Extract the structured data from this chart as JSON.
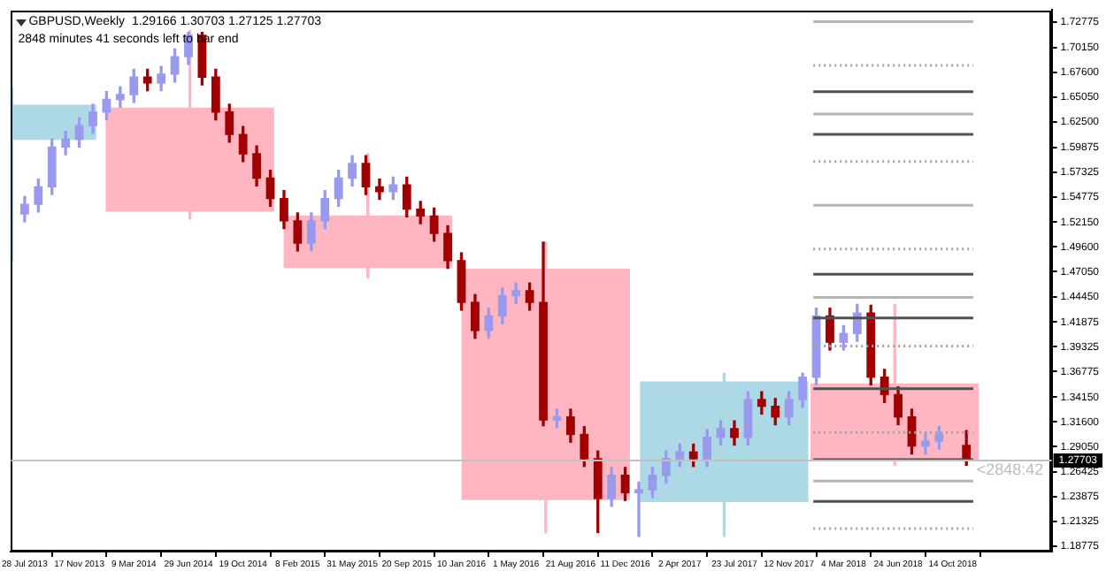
{
  "chart_data": {
    "type": "candlestick",
    "title": "GBPUSD,Weekly  1.29166 1.30703 1.27125 1.27703",
    "annotations": [
      "2848 minutes 41 seconds left to bar end",
      {
        "text": "<2848:42",
        "x": "2018-12-02",
        "y": 1.27703
      }
    ],
    "xlim": [
      "2013-06-30",
      "2019-05-05"
    ],
    "xticks": [
      {
        "value": "2013-07-28",
        "label": "28 Jul 2013"
      },
      {
        "value": "2013-11-17",
        "label": "17 Nov 2013"
      },
      {
        "value": "2014-03-09",
        "label": "9 Mar 2014"
      },
      {
        "value": "2014-06-29",
        "label": "29 Jun 2014"
      },
      {
        "value": "2014-10-19",
        "label": "19 Oct 2014"
      },
      {
        "value": "2015-02-08",
        "label": "8 Feb 2015"
      },
      {
        "value": "2015-05-31",
        "label": "31 May 2015"
      },
      {
        "value": "2015-09-20",
        "label": "20 Sep 2015"
      },
      {
        "value": "2016-01-10",
        "label": "10 Jan 2016"
      },
      {
        "value": "2016-05-01",
        "label": "1 May 2016"
      },
      {
        "value": "2016-08-21",
        "label": "21 Aug 2016"
      },
      {
        "value": "2016-12-11",
        "label": "11 Dec 2016"
      },
      {
        "value": "2017-04-02",
        "label": "2 Apr 2017"
      },
      {
        "value": "2017-07-23",
        "label": "23 Jul 2017"
      },
      {
        "value": "2017-11-12",
        "label": "12 Nov 2017"
      },
      {
        "value": "2018-03-04",
        "label": "4 Mar 2018"
      },
      {
        "value": "2018-06-24",
        "label": "24 Jun 2018"
      },
      {
        "value": "2018-10-14",
        "label": "14 Oct 2018"
      }
    ],
    "ylim": [
      1.1824,
      1.7402
    ],
    "yticks": [
      1.18775,
      1.21325,
      1.23875,
      1.26425,
      {
        "value": 1.2905,
        "label": "1.29050"
      },
      {
        "value": 1.316,
        "label": "1.31600"
      },
      {
        "value": 1.3415,
        "label": "1.34150"
      },
      1.36775,
      1.39325,
      1.41875,
      {
        "value": 1.4445,
        "label": "1.44450"
      },
      {
        "value": 1.4705,
        "label": "1.47050"
      },
      {
        "value": 1.496,
        "label": "1.49600"
      },
      {
        "value": 1.5215,
        "label": "1.52150"
      },
      1.54775,
      1.57325,
      1.59875,
      {
        "value": 1.625,
        "label": "1.62500"
      },
      {
        "value": 1.6505,
        "label": "1.65050"
      },
      {
        "value": 1.676,
        "label": "1.67600"
      },
      {
        "value": 1.7015,
        "label": "1.70150"
      },
      1.72775
    ],
    "ref_lines": [
      {
        "axis": "y",
        "value": 1.27703,
        "label": "1.27703",
        "color": "#c0c0c0"
      }
    ],
    "series": [
      {
        "type": "candlestick",
        "x": [
          "2013-07-02",
          "2014-07-02",
          "2015-07-02",
          "2016-07-01",
          "2017-07-02",
          "2018-06-17"
        ],
        "ohlc": [
          [
            1.607,
            1.66,
            1.482,
            1.642
          ],
          [
            1.639,
            1.719,
            1.525,
            1.533
          ],
          [
            1.528,
            1.592,
            1.464,
            1.475
          ],
          [
            1.473,
            1.501,
            1.202,
            1.236
          ],
          [
            1.234,
            1.366,
            1.198,
            1.357
          ],
          [
            1.355,
            1.437,
            1.27125,
            1.27703
          ]
        ],
        "colors": [
          "#add8e6",
          "#ffb6c1",
          "#ffb6c1",
          "#ffb6c1",
          "#add8e6",
          "#ffb6c1"
        ]
      },
      {
        "type": "candlestick",
        "x": [
          "2013-07-28",
          "2013-08-25",
          "2013-09-22",
          "2013-10-20",
          "2013-11-17",
          "2013-12-15",
          "2014-01-12",
          "2014-02-09",
          "2014-03-09",
          "2014-04-06",
          "2014-05-04",
          "2014-06-01",
          "2014-06-29",
          "2014-07-27",
          "2014-08-24",
          "2014-09-21",
          "2014-10-19",
          "2014-11-16",
          "2014-12-14",
          "2015-01-11",
          "2015-02-08",
          "2015-03-08",
          "2015-04-05",
          "2015-05-03",
          "2015-05-31",
          "2015-06-28",
          "2015-07-26",
          "2015-08-23",
          "2015-09-20",
          "2015-10-18",
          "2015-11-15",
          "2015-12-13",
          "2016-01-10",
          "2016-02-07",
          "2016-03-06",
          "2016-04-03",
          "2016-05-01",
          "2016-05-29",
          "2016-06-26",
          "2016-07-24",
          "2016-08-21",
          "2016-09-18",
          "2016-10-16",
          "2016-11-13",
          "2016-12-11",
          "2017-01-08",
          "2017-02-05",
          "2017-03-05",
          "2017-04-02",
          "2017-04-30",
          "2017-05-28",
          "2017-06-25",
          "2017-07-23",
          "2017-08-20",
          "2017-09-17",
          "2017-10-15",
          "2017-11-12",
          "2017-12-10",
          "2018-01-07",
          "2018-02-04",
          "2018-03-04",
          "2018-04-01",
          "2018-04-29",
          "2018-05-27",
          "2018-06-24",
          "2018-07-22",
          "2018-08-19",
          "2018-09-16",
          "2018-11-11"
        ],
        "ohlc": [
          [
            1.53,
            1.548,
            1.522,
            1.54
          ],
          [
            1.54,
            1.566,
            1.532,
            1.558
          ],
          [
            1.558,
            1.607,
            1.55,
            1.599
          ],
          [
            1.599,
            1.615,
            1.591,
            1.607
          ],
          [
            1.607,
            1.629,
            1.599,
            1.621
          ],
          [
            1.621,
            1.643,
            1.613,
            1.635
          ],
          [
            1.635,
            1.656,
            1.627,
            1.648
          ],
          [
            1.648,
            1.661,
            1.64,
            1.653
          ],
          [
            1.653,
            1.679,
            1.645,
            1.671
          ],
          [
            1.671,
            1.679,
            1.657,
            1.665
          ],
          [
            1.665,
            1.682,
            1.657,
            1.674
          ],
          [
            1.674,
            1.7,
            1.666,
            1.692
          ],
          [
            1.692,
            1.717,
            1.684,
            1.714
          ],
          [
            1.714,
            1.717,
            1.663,
            1.671
          ],
          [
            1.671,
            1.679,
            1.627,
            1.635
          ],
          [
            1.635,
            1.643,
            1.604,
            1.612
          ],
          [
            1.612,
            1.62,
            1.584,
            1.592
          ],
          [
            1.592,
            1.6,
            1.559,
            1.567
          ],
          [
            1.567,
            1.575,
            1.538,
            1.546
          ],
          [
            1.546,
            1.554,
            1.515,
            1.523
          ],
          [
            1.523,
            1.531,
            1.492,
            1.5
          ],
          [
            1.5,
            1.531,
            1.492,
            1.523
          ],
          [
            1.523,
            1.554,
            1.515,
            1.546
          ],
          [
            1.546,
            1.575,
            1.538,
            1.567
          ],
          [
            1.567,
            1.59,
            1.559,
            1.582
          ],
          [
            1.582,
            1.59,
            1.55,
            1.558
          ],
          [
            1.558,
            1.566,
            1.545,
            1.553
          ],
          [
            1.553,
            1.568,
            1.545,
            1.56
          ],
          [
            1.56,
            1.568,
            1.527,
            1.535
          ],
          [
            1.535,
            1.543,
            1.52,
            1.528
          ],
          [
            1.528,
            1.536,
            1.502,
            1.51
          ],
          [
            1.51,
            1.518,
            1.474,
            1.482
          ],
          [
            1.482,
            1.49,
            1.431,
            1.439
          ],
          [
            1.439,
            1.447,
            1.402,
            1.41
          ],
          [
            1.41,
            1.433,
            1.402,
            1.425
          ],
          [
            1.425,
            1.454,
            1.417,
            1.446
          ],
          [
            1.446,
            1.459,
            1.438,
            1.451
          ],
          [
            1.451,
            1.459,
            1.431,
            1.439
          ],
          [
            1.439,
            1.501,
            1.312,
            1.318
          ],
          [
            1.318,
            1.329,
            1.31,
            1.321
          ],
          [
            1.321,
            1.329,
            1.295,
            1.303
          ],
          [
            1.303,
            1.311,
            1.27,
            1.278
          ],
          [
            1.278,
            1.286,
            1.202,
            1.237
          ],
          [
            1.237,
            1.269,
            1.229,
            1.261
          ],
          [
            1.261,
            1.269,
            1.235,
            1.243
          ],
          [
            1.243,
            1.254,
            1.198,
            1.246
          ],
          [
            1.246,
            1.269,
            1.238,
            1.261
          ],
          [
            1.261,
            1.286,
            1.253,
            1.278
          ],
          [
            1.278,
            1.293,
            1.27,
            1.285
          ],
          [
            1.285,
            1.293,
            1.27,
            1.278
          ],
          [
            1.278,
            1.308,
            1.27,
            1.3
          ],
          [
            1.3,
            1.317,
            1.292,
            1.309
          ],
          [
            1.309,
            1.317,
            1.292,
            1.3
          ],
          [
            1.3,
            1.347,
            1.292,
            1.339
          ],
          [
            1.339,
            1.347,
            1.324,
            1.332
          ],
          [
            1.332,
            1.34,
            1.313,
            1.321
          ],
          [
            1.321,
            1.347,
            1.313,
            1.339
          ],
          [
            1.339,
            1.366,
            1.331,
            1.362
          ],
          [
            1.362,
            1.433,
            1.354,
            1.425
          ],
          [
            1.425,
            1.433,
            1.39,
            1.398
          ],
          [
            1.398,
            1.415,
            1.39,
            1.407
          ],
          [
            1.407,
            1.437,
            1.399,
            1.428
          ],
          [
            1.428,
            1.436,
            1.354,
            1.362
          ],
          [
            1.362,
            1.37,
            1.336,
            1.344
          ],
          [
            1.344,
            1.352,
            1.313,
            1.321
          ],
          [
            1.321,
            1.329,
            1.283,
            1.291
          ],
          [
            1.291,
            1.304,
            1.283,
            1.296
          ],
          [
            1.296,
            1.311,
            1.288,
            1.303
          ],
          [
            1.29166,
            1.30703,
            1.27125,
            1.27703
          ]
        ],
        "colors": [
          "#9999ee",
          "#9999ee",
          "#9999ee",
          "#9999ee",
          "#9999ee",
          "#9999ee",
          "#9999ee",
          "#9999ee",
          "#9999ee",
          "#a00000",
          "#9999ee",
          "#9999ee",
          "#9999ee",
          "#a00000",
          "#a00000",
          "#a00000",
          "#a00000",
          "#a00000",
          "#a00000",
          "#a00000",
          "#a00000",
          "#9999ee",
          "#9999ee",
          "#9999ee",
          "#9999ee",
          "#a00000",
          "#a00000",
          "#9999ee",
          "#a00000",
          "#a00000",
          "#a00000",
          "#a00000",
          "#a00000",
          "#a00000",
          "#9999ee",
          "#9999ee",
          "#9999ee",
          "#a00000",
          "#a00000",
          "#9999ee",
          "#a00000",
          "#a00000",
          "#a00000",
          "#9999ee",
          "#a00000",
          "#9999ee",
          "#9999ee",
          "#9999ee",
          "#9999ee",
          "#a00000",
          "#9999ee",
          "#9999ee",
          "#a00000",
          "#9999ee",
          "#a00000",
          "#a00000",
          "#9999ee",
          "#9999ee",
          "#9999ee",
          "#a00000",
          "#9999ee",
          "#9999ee",
          "#a00000",
          "#a00000",
          "#a00000",
          "#a00000",
          "#9999ee",
          "#9999ee",
          "#a00000"
        ]
      },
      {
        "type": "line",
        "x": [
          "2018-01-01",
          "2018-11-25"
        ],
        "values": [
          1.728,
          1.728
        ],
        "color": "#b4b4b4",
        "line_style": "solid"
      },
      {
        "type": "line",
        "x": [
          "2018-01-01",
          "2018-11-25"
        ],
        "values": [
          1.683,
          1.683
        ],
        "color": "#a0a0a0",
        "line_style": "dotted"
      },
      {
        "type": "line",
        "x": [
          "2018-01-01",
          "2018-11-25"
        ],
        "values": [
          1.656,
          1.656
        ],
        "color": "#505050",
        "line_style": "solid"
      },
      {
        "type": "line",
        "x": [
          "2018-01-01",
          "2018-11-25"
        ],
        "values": [
          1.633,
          1.633
        ],
        "color": "#b4b4b4",
        "line_style": "solid"
      },
      {
        "type": "line",
        "x": [
          "2018-01-01",
          "2018-11-25"
        ],
        "values": [
          1.612,
          1.612
        ],
        "color": "#505050",
        "line_style": "solid"
      },
      {
        "type": "line",
        "x": [
          "2018-01-01",
          "2018-11-25"
        ],
        "values": [
          1.584,
          1.584
        ],
        "color": "#a0a0a0",
        "line_style": "dotted"
      },
      {
        "type": "line",
        "x": [
          "2018-01-01",
          "2018-11-25"
        ],
        "values": [
          1.539,
          1.539
        ],
        "color": "#b4b4b4",
        "line_style": "solid"
      },
      {
        "type": "line",
        "x": [
          "2018-01-01",
          "2018-11-25"
        ],
        "values": [
          1.494,
          1.494
        ],
        "color": "#a0a0a0",
        "line_style": "dotted"
      },
      {
        "type": "line",
        "x": [
          "2018-01-01",
          "2018-11-25"
        ],
        "values": [
          1.468,
          1.468
        ],
        "color": "#505050",
        "line_style": "solid"
      },
      {
        "type": "line",
        "x": [
          "2018-01-01",
          "2018-11-25"
        ],
        "values": [
          1.444,
          1.444
        ],
        "color": "#b4b4b4",
        "line_style": "solid"
      },
      {
        "type": "line",
        "x": [
          "2018-01-01",
          "2018-11-25"
        ],
        "values": [
          1.423,
          1.423
        ],
        "color": "#505050",
        "line_style": "solid"
      },
      {
        "type": "line",
        "x": [
          "2018-01-01",
          "2018-11-25"
        ],
        "values": [
          1.394,
          1.394
        ],
        "color": "#a0a0a0",
        "line_style": "dotted"
      },
      {
        "type": "line",
        "x": [
          "2018-01-01",
          "2018-11-25"
        ],
        "values": [
          1.35,
          1.35
        ],
        "color": "#505050",
        "line_style": "solid"
      },
      {
        "type": "line",
        "x": [
          "2018-01-01",
          "2018-11-25"
        ],
        "values": [
          1.305,
          1.305
        ],
        "color": "#a0a0a0",
        "line_style": "dotted"
      },
      {
        "type": "line",
        "x": [
          "2018-01-01",
          "2018-11-25"
        ],
        "values": [
          1.277,
          1.277
        ],
        "color": "#505050",
        "line_style": "solid"
      },
      {
        "type": "line",
        "x": [
          "2018-01-01",
          "2018-11-25"
        ],
        "values": [
          1.255,
          1.255
        ],
        "color": "#b4b4b4",
        "line_style": "solid"
      },
      {
        "type": "line",
        "x": [
          "2018-01-01",
          "2018-11-25"
        ],
        "values": [
          1.234,
          1.234
        ],
        "color": "#505050",
        "line_style": "solid"
      },
      {
        "type": "line",
        "x": [
          "2018-01-01",
          "2018-11-25"
        ],
        "values": [
          1.206,
          1.206
        ],
        "color": "#a0a0a0",
        "line_style": "dotted"
      }
    ]
  }
}
